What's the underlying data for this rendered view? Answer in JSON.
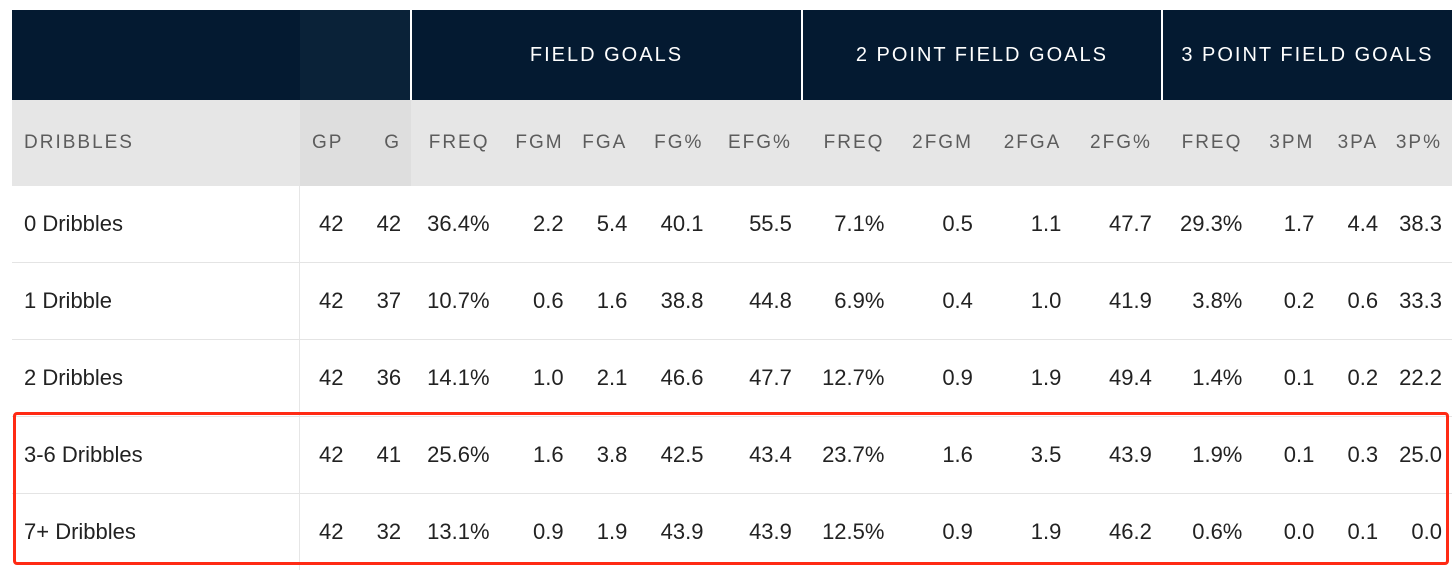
{
  "group_headers": {
    "field_goals": "FIELD GOALS",
    "two_point": "2 POINT FIELD GOALS",
    "three_point": "3 POINT FIELD GOALS"
  },
  "columns": [
    "DRIBBLES",
    "GP",
    "G",
    "FREQ",
    "FGM",
    "FGA",
    "FG%",
    "EFG%",
    "FREQ",
    "2FGM",
    "2FGA",
    "2FG%",
    "FREQ",
    "3PM",
    "3PA",
    "3P%"
  ],
  "rows": [
    [
      "0 Dribbles",
      "42",
      "42",
      "36.4%",
      "2.2",
      "5.4",
      "40.1",
      "55.5",
      "7.1%",
      "0.5",
      "1.1",
      "47.7",
      "29.3%",
      "1.7",
      "4.4",
      "38.3"
    ],
    [
      "1 Dribble",
      "42",
      "37",
      "10.7%",
      "0.6",
      "1.6",
      "38.8",
      "44.8",
      "6.9%",
      "0.4",
      "1.0",
      "41.9",
      "3.8%",
      "0.2",
      "0.6",
      "33.3"
    ],
    [
      "2 Dribbles",
      "42",
      "36",
      "14.1%",
      "1.0",
      "2.1",
      "46.6",
      "47.7",
      "12.7%",
      "0.9",
      "1.9",
      "49.4",
      "1.4%",
      "0.1",
      "0.2",
      "22.2"
    ],
    [
      "3-6 Dribbles",
      "42",
      "41",
      "25.6%",
      "1.6",
      "3.8",
      "42.5",
      "43.4",
      "23.7%",
      "1.6",
      "3.5",
      "43.9",
      "1.9%",
      "0.1",
      "0.3",
      "25.0"
    ],
    [
      "7+ Dribbles",
      "42",
      "32",
      "13.1%",
      "0.9",
      "1.9",
      "43.9",
      "43.9",
      "12.5%",
      "0.9",
      "1.9",
      "46.2",
      "0.6%",
      "0.0",
      "0.1",
      "0.0"
    ]
  ],
  "highlight": {
    "color": "#ff2a14",
    "rows": [
      "3-6 Dribbles",
      "7+ Dribbles"
    ]
  },
  "colors": {
    "header_bg": "#041a31",
    "subheader_bg": "#e6e6e6",
    "text": "#222222"
  }
}
